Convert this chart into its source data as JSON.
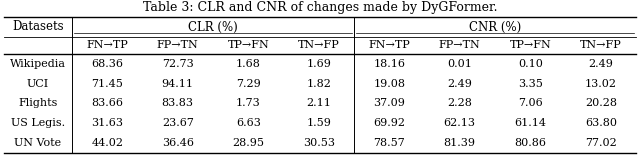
{
  "title": "Table 3: CLR and CNR of changes made by DyGFormer.",
  "col_header_1": "Datasets",
  "col_header_2": "CLR (%)",
  "col_header_3": "CNR (%)",
  "sub_headers": [
    "FN→TP",
    "FP→TN",
    "TP→FN",
    "TN→FP",
    "FN→TP",
    "FP→TN",
    "TP→FN",
    "TN→FP"
  ],
  "row_labels": [
    "Wikipedia",
    "UCI",
    "Flights",
    "US Legis.",
    "UN Vote"
  ],
  "data": [
    [
      68.36,
      72.73,
      1.68,
      1.69,
      18.16,
      0.01,
      0.1,
      2.49
    ],
    [
      71.45,
      94.11,
      7.29,
      1.82,
      19.08,
      2.49,
      3.35,
      13.02
    ],
    [
      83.66,
      83.83,
      1.73,
      2.11,
      37.09,
      2.28,
      7.06,
      20.28
    ],
    [
      31.63,
      23.67,
      6.63,
      1.59,
      69.92,
      62.13,
      61.14,
      63.8
    ],
    [
      44.02,
      36.46,
      28.95,
      30.53,
      78.57,
      81.39,
      80.86,
      77.02
    ]
  ],
  "bg_color": "#ffffff",
  "text_color": "#000000",
  "line_color": "#000000",
  "title_fontsize": 9.0,
  "header_fontsize": 8.5,
  "data_fontsize": 8.0
}
